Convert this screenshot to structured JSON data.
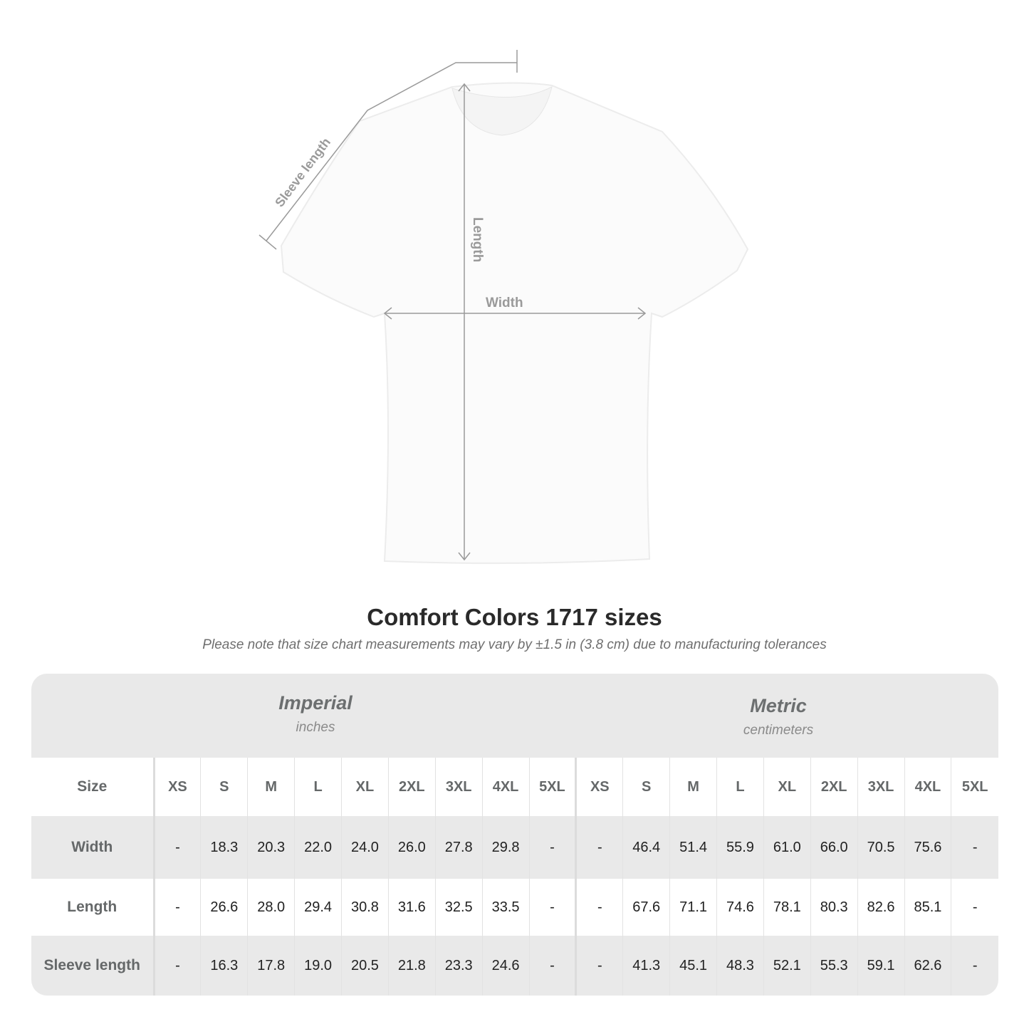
{
  "diagram": {
    "labels": {
      "sleeve": "Sleeve length",
      "length": "Length",
      "width": "Width"
    }
  },
  "title": "Comfort Colors 1717 sizes",
  "note": "Please note that size chart measurements may vary by ±1.5 in (3.8 cm) due to manufacturing tolerances",
  "imperial": {
    "heading": "Imperial",
    "unit": "inches"
  },
  "metric": {
    "heading": "Metric",
    "unit": "centimeters"
  },
  "size_label": "Size",
  "sizes": [
    "XS",
    "S",
    "M",
    "L",
    "XL",
    "2XL",
    "3XL",
    "4XL",
    "5XL"
  ],
  "rows": [
    {
      "label": "Width",
      "imperial": [
        "-",
        "18.3",
        "20.3",
        "22.0",
        "24.0",
        "26.0",
        "27.8",
        "29.8",
        "-"
      ],
      "metric": [
        "-",
        "46.4",
        "51.4",
        "55.9",
        "61.0",
        "66.0",
        "70.5",
        "75.6",
        "-"
      ]
    },
    {
      "label": "Length",
      "imperial": [
        "-",
        "26.6",
        "28.0",
        "29.4",
        "30.8",
        "31.6",
        "32.5",
        "33.5",
        "-"
      ],
      "metric": [
        "-",
        "67.6",
        "71.1",
        "74.6",
        "78.1",
        "80.3",
        "82.6",
        "85.1",
        "-"
      ]
    },
    {
      "label": "Sleeve length",
      "imperial": [
        "-",
        "16.3",
        "17.8",
        "19.0",
        "20.5",
        "21.8",
        "23.3",
        "24.6",
        "-"
      ],
      "metric": [
        "-",
        "41.3",
        "45.1",
        "48.3",
        "52.1",
        "55.3",
        "59.1",
        "62.6",
        "-"
      ]
    }
  ],
  "colors": {
    "band": "#e9e9e9",
    "label": "#656869",
    "measure_line": "#9a9a9a"
  }
}
